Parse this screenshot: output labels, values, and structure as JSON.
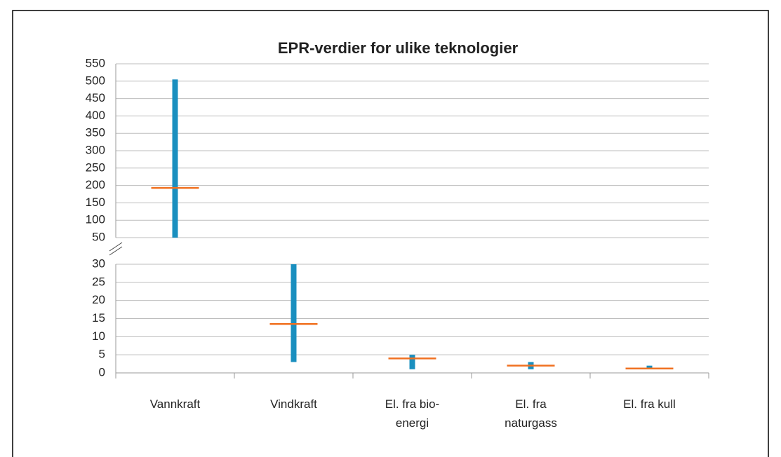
{
  "chart_data": {
    "type": "range",
    "title": "EPR-verdier for ulike teknologier",
    "categories": [
      "Vannkraft",
      "Vindkraft",
      "El. fra bio-energi",
      "El. fra naturgass",
      "El. fra kull"
    ],
    "low": [
      50,
      3,
      1,
      1,
      1
    ],
    "high": [
      505,
      30,
      5,
      3,
      2
    ],
    "mean": [
      193,
      13.5,
      4,
      2,
      1.2
    ],
    "panel": [
      0,
      1,
      1,
      1,
      1
    ],
    "range_color": "#1a8fbf",
    "mean_color": "#f07020",
    "grid": true,
    "panels": [
      {
        "ylim": [
          50,
          550
        ],
        "yticks": [
          50,
          100,
          150,
          200,
          250,
          300,
          350,
          400,
          450,
          500,
          550
        ]
      },
      {
        "ylim": [
          0,
          30
        ],
        "yticks": [
          0,
          5,
          10,
          15,
          20,
          25,
          30
        ]
      }
    ]
  }
}
